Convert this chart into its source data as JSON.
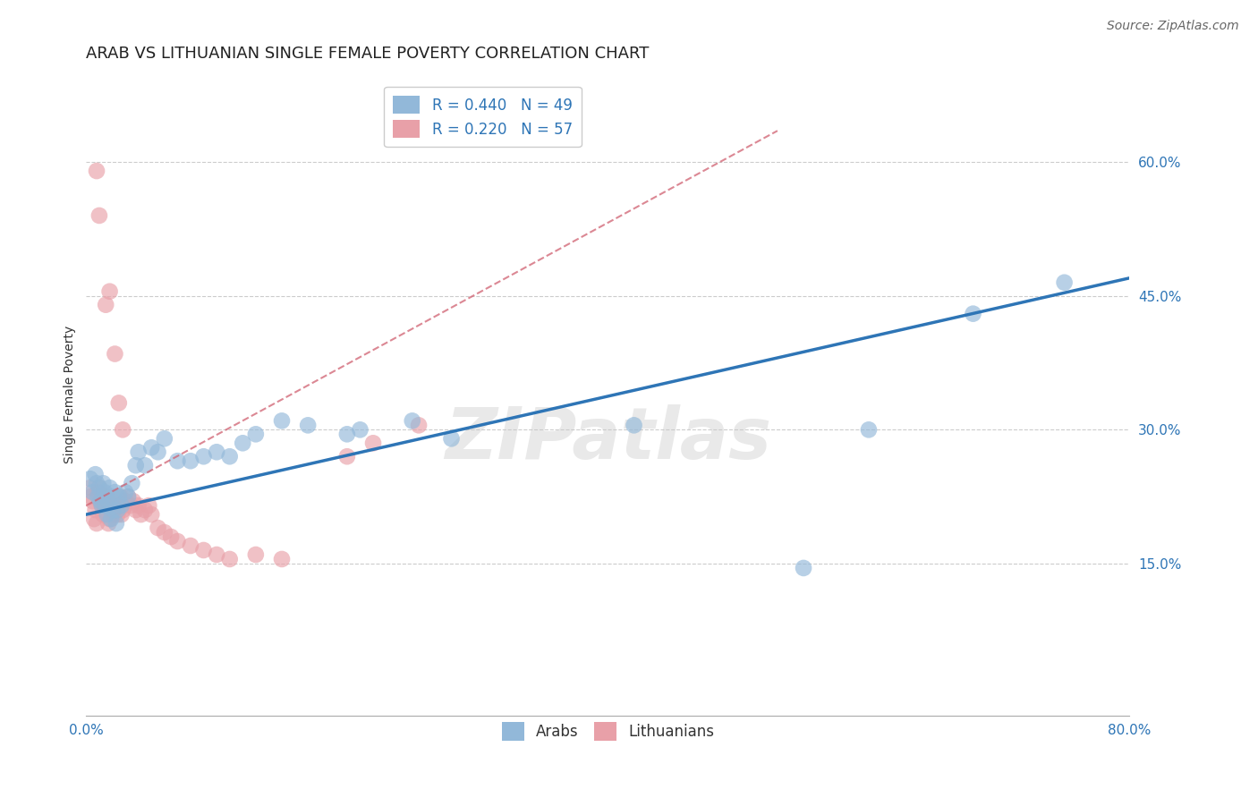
{
  "title": "ARAB VS LITHUANIAN SINGLE FEMALE POVERTY CORRELATION CHART",
  "source": "Source: ZipAtlas.com",
  "xlabel": "",
  "ylabel": "Single Female Poverty",
  "xlim": [
    0.0,
    0.8
  ],
  "ylim": [
    -0.02,
    0.7
  ],
  "ytick_positions": [
    0.15,
    0.3,
    0.45,
    0.6
  ],
  "ytick_labels": [
    "15.0%",
    "30.0%",
    "45.0%",
    "60.0%"
  ],
  "arab_R": 0.44,
  "arab_N": 49,
  "lith_R": 0.22,
  "lith_N": 57,
  "arab_color": "#92b8d9",
  "lith_color": "#e8a0a8",
  "arab_line_color": "#2e75b6",
  "lith_line_color": "#d06070",
  "watermark": "ZIPatlas",
  "watermark_color": "#c8c8c8",
  "grid_color": "#cccccc",
  "arab_scatter_x": [
    0.003,
    0.005,
    0.007,
    0.008,
    0.009,
    0.01,
    0.011,
    0.012,
    0.013,
    0.014,
    0.015,
    0.016,
    0.017,
    0.018,
    0.019,
    0.02,
    0.021,
    0.022,
    0.023,
    0.024,
    0.025,
    0.027,
    0.03,
    0.032,
    0.035,
    0.038,
    0.04,
    0.045,
    0.05,
    0.055,
    0.06,
    0.07,
    0.08,
    0.09,
    0.1,
    0.11,
    0.12,
    0.13,
    0.15,
    0.17,
    0.2,
    0.21,
    0.25,
    0.28,
    0.42,
    0.55,
    0.6,
    0.68,
    0.75
  ],
  "arab_scatter_y": [
    0.245,
    0.23,
    0.25,
    0.24,
    0.225,
    0.235,
    0.22,
    0.215,
    0.24,
    0.23,
    0.215,
    0.205,
    0.22,
    0.235,
    0.2,
    0.225,
    0.21,
    0.23,
    0.195,
    0.21,
    0.225,
    0.215,
    0.23,
    0.225,
    0.24,
    0.26,
    0.275,
    0.26,
    0.28,
    0.275,
    0.29,
    0.265,
    0.265,
    0.27,
    0.275,
    0.27,
    0.285,
    0.295,
    0.31,
    0.305,
    0.295,
    0.3,
    0.31,
    0.29,
    0.305,
    0.145,
    0.3,
    0.43,
    0.465
  ],
  "lith_scatter_x": [
    0.003,
    0.004,
    0.005,
    0.006,
    0.007,
    0.008,
    0.009,
    0.01,
    0.011,
    0.012,
    0.013,
    0.014,
    0.015,
    0.016,
    0.017,
    0.018,
    0.019,
    0.02,
    0.021,
    0.022,
    0.023,
    0.024,
    0.025,
    0.026,
    0.027,
    0.028,
    0.029,
    0.03,
    0.032,
    0.034,
    0.036,
    0.038,
    0.04,
    0.042,
    0.045,
    0.048,
    0.05,
    0.055,
    0.06,
    0.065,
    0.07,
    0.08,
    0.09,
    0.1,
    0.11,
    0.13,
    0.15,
    0.2,
    0.22,
    0.255,
    0.008,
    0.01,
    0.015,
    0.018,
    0.022,
    0.025,
    0.028
  ],
  "lith_scatter_y": [
    0.235,
    0.225,
    0.22,
    0.2,
    0.21,
    0.195,
    0.23,
    0.235,
    0.22,
    0.215,
    0.205,
    0.21,
    0.225,
    0.215,
    0.195,
    0.2,
    0.21,
    0.22,
    0.205,
    0.215,
    0.21,
    0.205,
    0.215,
    0.225,
    0.205,
    0.21,
    0.215,
    0.22,
    0.225,
    0.215,
    0.22,
    0.21,
    0.215,
    0.205,
    0.21,
    0.215,
    0.205,
    0.19,
    0.185,
    0.18,
    0.175,
    0.17,
    0.165,
    0.16,
    0.155,
    0.16,
    0.155,
    0.27,
    0.285,
    0.305,
    0.59,
    0.54,
    0.44,
    0.455,
    0.385,
    0.33,
    0.3
  ],
  "background_color": "#ffffff",
  "title_fontsize": 13,
  "axis_label_fontsize": 10,
  "tick_fontsize": 11,
  "legend_fontsize": 12,
  "source_fontsize": 10,
  "arab_line_x0": 0.0,
  "arab_line_x1": 0.8,
  "arab_line_y0": 0.205,
  "arab_line_y1": 0.47,
  "lith_line_x0": 0.0,
  "lith_line_x1": 0.53,
  "lith_line_y0": 0.215,
  "lith_line_y1": 0.635
}
